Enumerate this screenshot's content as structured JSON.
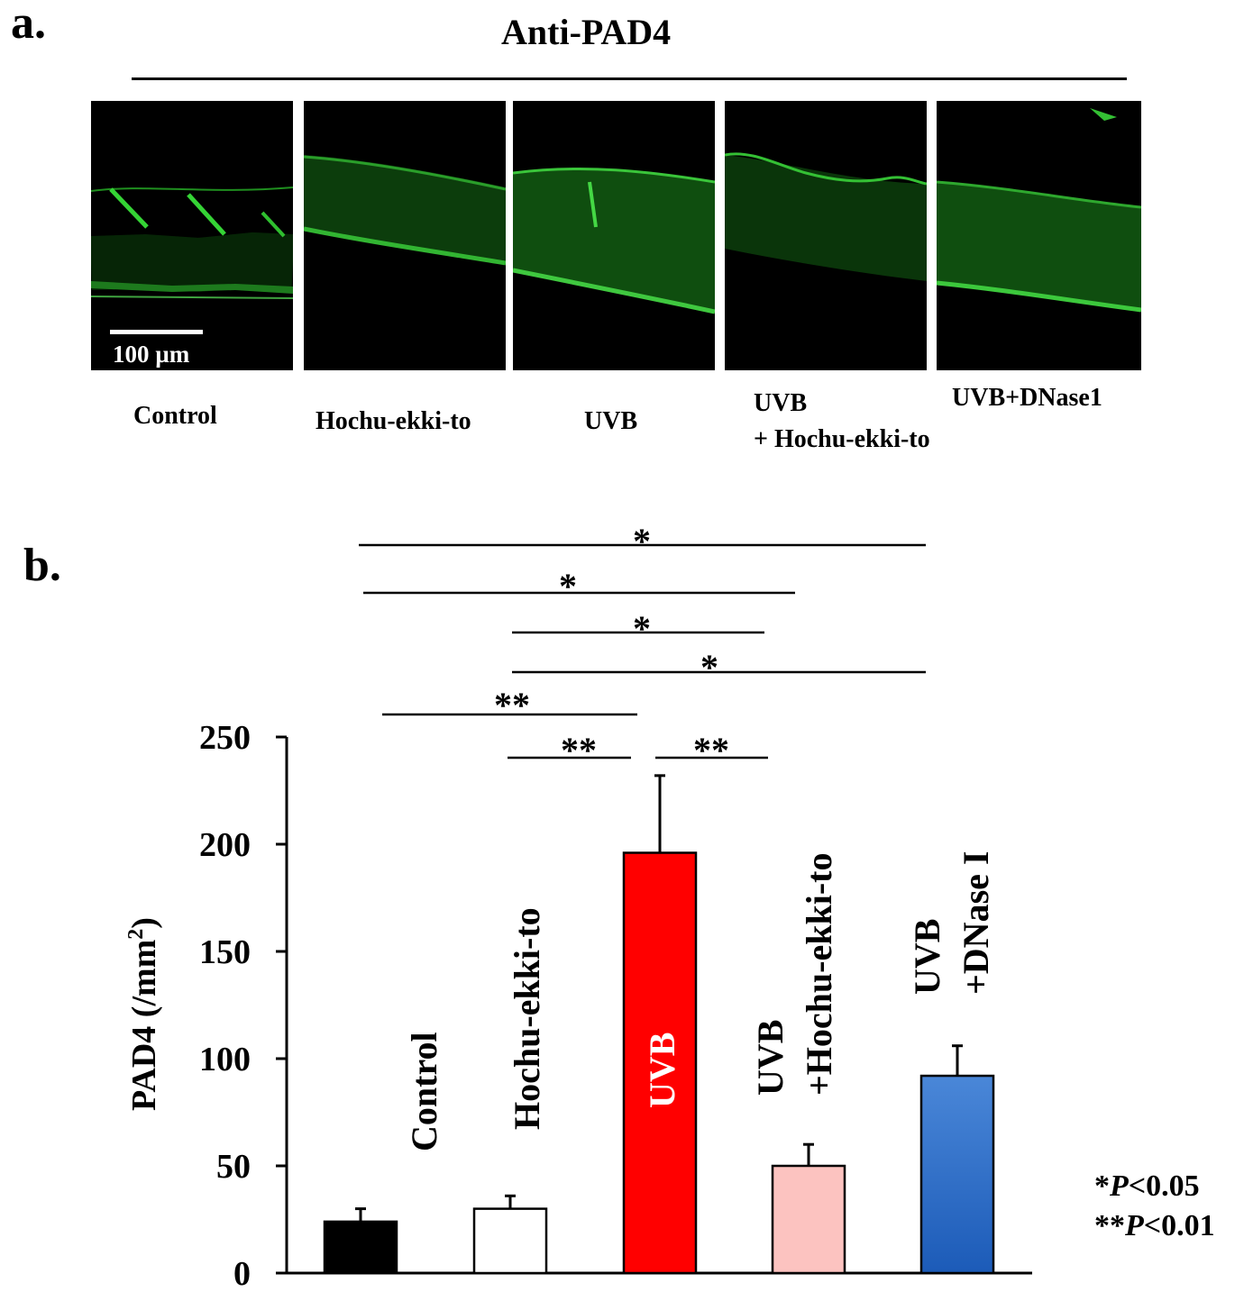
{
  "panel_a": {
    "letter": "a.",
    "title": "Anti-PAD4",
    "scale_bar": "100 µm",
    "panels": [
      "Control",
      "Hochu-ekki-to",
      "UVB",
      "UVB",
      "UVB+DNase1"
    ],
    "panel4_line2": "+ Hochu-ekki-to"
  },
  "panel_b": {
    "letter": "b.",
    "p_legend": {
      "line1_stars": "*",
      "line1_p": "P",
      "line1_rest": "<0.05",
      "line2_stars": "**",
      "line2_p": "P",
      "line2_rest": "<0.01"
    }
  },
  "chart_data": {
    "type": "bar",
    "ylabel": "PAD4 (/mm2)",
    "ylabel_main": "PAD4 (/mm",
    "ylabel_sup": "2",
    "ylabel_end": ")",
    "ylim": [
      0,
      250
    ],
    "yticks": [
      0,
      50,
      100,
      150,
      200,
      250
    ],
    "grid": false,
    "legend": "none",
    "categories": [
      "Control",
      "Hochu-ekki-to",
      "UVB",
      "UVB +Hochu-ekki-to",
      "UVB +DNase I"
    ],
    "category_lines": [
      [
        "Control"
      ],
      [
        "Hochu-ekki-to"
      ],
      [
        "UVB"
      ],
      [
        "UVB",
        "+Hochu-ekki-to"
      ],
      [
        "UVB",
        "+DNase I"
      ]
    ],
    "values": [
      24,
      30,
      196,
      50,
      92
    ],
    "errors": [
      6,
      6,
      36,
      10,
      14
    ],
    "colors": [
      "#000000",
      "#ffffff",
      "#ff0000",
      "#fcc3c0",
      "#2e6fc8"
    ],
    "significance": [
      {
        "from": 0,
        "to": 4,
        "label": "*"
      },
      {
        "from": 0,
        "to": 3,
        "label": "*"
      },
      {
        "from": 1,
        "to": 3,
        "label": "*"
      },
      {
        "from": 1,
        "to": 4,
        "label": "*"
      },
      {
        "from": 0,
        "to": 2,
        "label": "**"
      },
      {
        "from": 1,
        "to": 2,
        "label": "**"
      },
      {
        "from": 2,
        "to": 3,
        "label": "**"
      }
    ]
  }
}
